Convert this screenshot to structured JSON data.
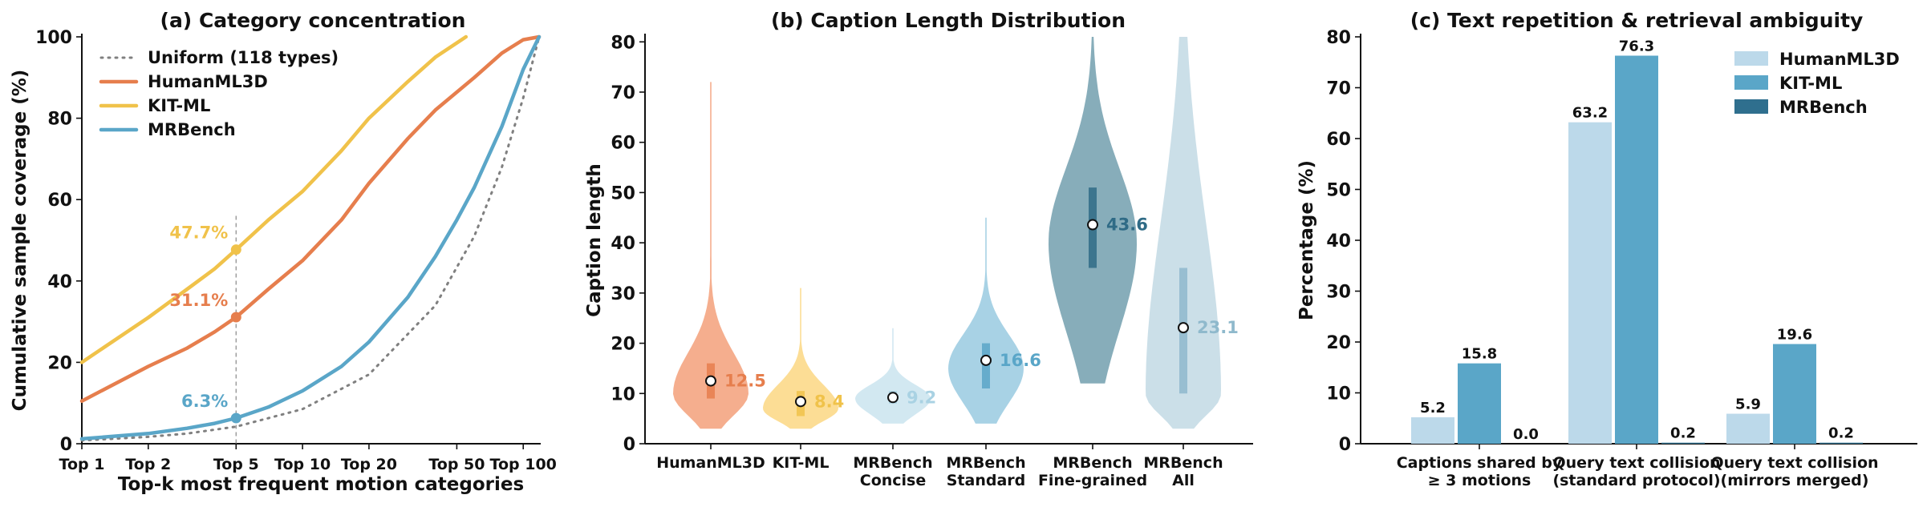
{
  "chart_data": [
    {
      "type": "line",
      "title": "(a) Category concentration",
      "xlabel": "Top-k most frequent motion categories",
      "ylabel": "Cumulative sample coverage (%)",
      "x_scale": "log",
      "x_ticks": [
        {
          "k": 1,
          "label": "Top 1"
        },
        {
          "k": 2,
          "label": "Top 2"
        },
        {
          "k": 5,
          "label": "Top 5"
        },
        {
          "k": 10,
          "label": "Top 10"
        },
        {
          "k": 20,
          "label": "Top 20"
        },
        {
          "k": 50,
          "label": "Top 50"
        },
        {
          "k": 100,
          "label": "Top 100"
        }
      ],
      "xlim": [
        1,
        118
      ],
      "ylim": [
        0,
        100
      ],
      "y_ticks": [
        0,
        20,
        40,
        60,
        80,
        100
      ],
      "grid": false,
      "legend_position": "top-left",
      "series": [
        {
          "name": "Uniform (118 types)",
          "color": "#808080",
          "style": "dotted",
          "points": [
            [
              1,
              0.8
            ],
            [
              2,
              1.7
            ],
            [
              3,
              2.5
            ],
            [
              5,
              4.2
            ],
            [
              10,
              8.5
            ],
            [
              20,
              17
            ],
            [
              40,
              34
            ],
            [
              60,
              51
            ],
            [
              80,
              68
            ],
            [
              100,
              85
            ],
            [
              118,
              100
            ]
          ]
        },
        {
          "name": "HumanML3D",
          "color": "#e67e4d",
          "style": "solid",
          "points": [
            [
              1,
              10.5
            ],
            [
              2,
              19
            ],
            [
              3,
              23.5
            ],
            [
              4,
              27.5
            ],
            [
              5,
              31.1
            ],
            [
              7,
              38
            ],
            [
              10,
              45
            ],
            [
              15,
              55
            ],
            [
              20,
              64
            ],
            [
              30,
              75
            ],
            [
              40,
              82
            ],
            [
              60,
              90
            ],
            [
              80,
              96
            ],
            [
              100,
              99.3
            ],
            [
              118,
              100
            ]
          ]
        },
        {
          "name": "KIT-ML",
          "color": "#f0c24a",
          "style": "solid",
          "points": [
            [
              1,
              20
            ],
            [
              2,
              31
            ],
            [
              3,
              38
            ],
            [
              4,
              43
            ],
            [
              5,
              47.7
            ],
            [
              7,
              55
            ],
            [
              10,
              62
            ],
            [
              15,
              72
            ],
            [
              20,
              80
            ],
            [
              30,
              89
            ],
            [
              40,
              95
            ],
            [
              55,
              100
            ]
          ]
        },
        {
          "name": "MRBench",
          "color": "#5aa6c8",
          "style": "solid",
          "points": [
            [
              1,
              1.2
            ],
            [
              2,
              2.5
            ],
            [
              3,
              3.8
            ],
            [
              4,
              5
            ],
            [
              5,
              6.3
            ],
            [
              7,
              9
            ],
            [
              10,
              13
            ],
            [
              15,
              19
            ],
            [
              20,
              25
            ],
            [
              30,
              36
            ],
            [
              40,
              46
            ],
            [
              50,
              55
            ],
            [
              60,
              63
            ],
            [
              80,
              78
            ],
            [
              100,
              92
            ],
            [
              118,
              100
            ]
          ]
        }
      ],
      "annotations": [
        {
          "text": "47.7%",
          "k": 5,
          "value": 47.7,
          "color": "#f0c24a"
        },
        {
          "text": "31.1%",
          "k": 5,
          "value": 31.1,
          "color": "#e67e4d"
        },
        {
          "text": "6.3%",
          "k": 5,
          "value": 6.3,
          "color": "#5aa6c8"
        }
      ]
    },
    {
      "type": "violin",
      "title": "(b) Caption Length Distribution",
      "xlabel": "",
      "ylabel": "Caption length",
      "ylim": [
        0,
        81
      ],
      "y_ticks": [
        0,
        10,
        20,
        30,
        40,
        50,
        60,
        70,
        80
      ],
      "grid": false,
      "series": [
        {
          "label": [
            "HumanML3D"
          ],
          "median": 12.5,
          "median_label": "12.5",
          "q1": 9,
          "q3": 16,
          "min": 3,
          "max": 72,
          "mode": 10,
          "color": "#f4a582",
          "dark": "#e67e4d"
        },
        {
          "label": [
            "KIT-ML"
          ],
          "median": 8.4,
          "median_label": "8.4",
          "q1": 5.5,
          "q3": 10.5,
          "min": 3,
          "max": 31,
          "mode": 7,
          "color": "#fcd98a",
          "dark": "#f0c24a"
        },
        {
          "label": [
            "MRBench",
            "Concise"
          ],
          "median": 9.2,
          "median_label": "9.2",
          "q1": 8,
          "q3": 10.5,
          "min": 4,
          "max": 23,
          "mode": 9,
          "color": "#cde5ef",
          "dark": "#a9d2e3"
        },
        {
          "label": [
            "MRBench",
            "Standard"
          ],
          "median": 16.6,
          "median_label": "16.6",
          "q1": 11,
          "q3": 20,
          "min": 4,
          "max": 45,
          "mode": 15,
          "color": "#9fcde2",
          "dark": "#5aa6c8"
        },
        {
          "label": [
            "MRBench",
            "Fine-grained"
          ],
          "median": 43.6,
          "median_label": "43.6",
          "q1": 35,
          "q3": 51,
          "min": 12,
          "max": 81,
          "mode": 40,
          "color": "#7aa4b2",
          "dark": "#2f6b86"
        },
        {
          "label": [
            "MRBench",
            "All"
          ],
          "median": 23.1,
          "median_label": "23.1",
          "q1": 10,
          "q3": 35,
          "min": 3,
          "max": 81,
          "mode": 10,
          "color": "#c5dce6",
          "dark": "#8fb9cc"
        }
      ]
    },
    {
      "type": "bar",
      "title": "(c) Text repetition & retrieval ambiguity",
      "xlabel": "",
      "ylabel": "Percentage (%)",
      "ylim": [
        0,
        80
      ],
      "y_ticks": [
        0,
        10,
        20,
        30,
        40,
        50,
        60,
        70,
        80
      ],
      "grid": false,
      "legend_position": "top-right",
      "categories": [
        [
          "Captions shared by",
          "≥ 3 motions"
        ],
        [
          "Query text collision",
          "(standard protocol)"
        ],
        [
          "Query text collision",
          "(mirrors merged)"
        ]
      ],
      "series": [
        {
          "name": "HumanML3D",
          "color": "#bcd9ea",
          "values": [
            5.2,
            63.2,
            5.9
          ],
          "labels": [
            "5.2",
            "63.2",
            "5.9"
          ]
        },
        {
          "name": "KIT-ML",
          "color": "#5aa6c8",
          "values": [
            15.8,
            76.3,
            19.6
          ],
          "labels": [
            "15.8",
            "76.3",
            "19.6"
          ]
        },
        {
          "name": "MRBench",
          "color": "#2f6f8e",
          "values": [
            0.0,
            0.2,
            0.2
          ],
          "labels": [
            "0.0",
            "0.2",
            "0.2"
          ]
        }
      ]
    }
  ]
}
